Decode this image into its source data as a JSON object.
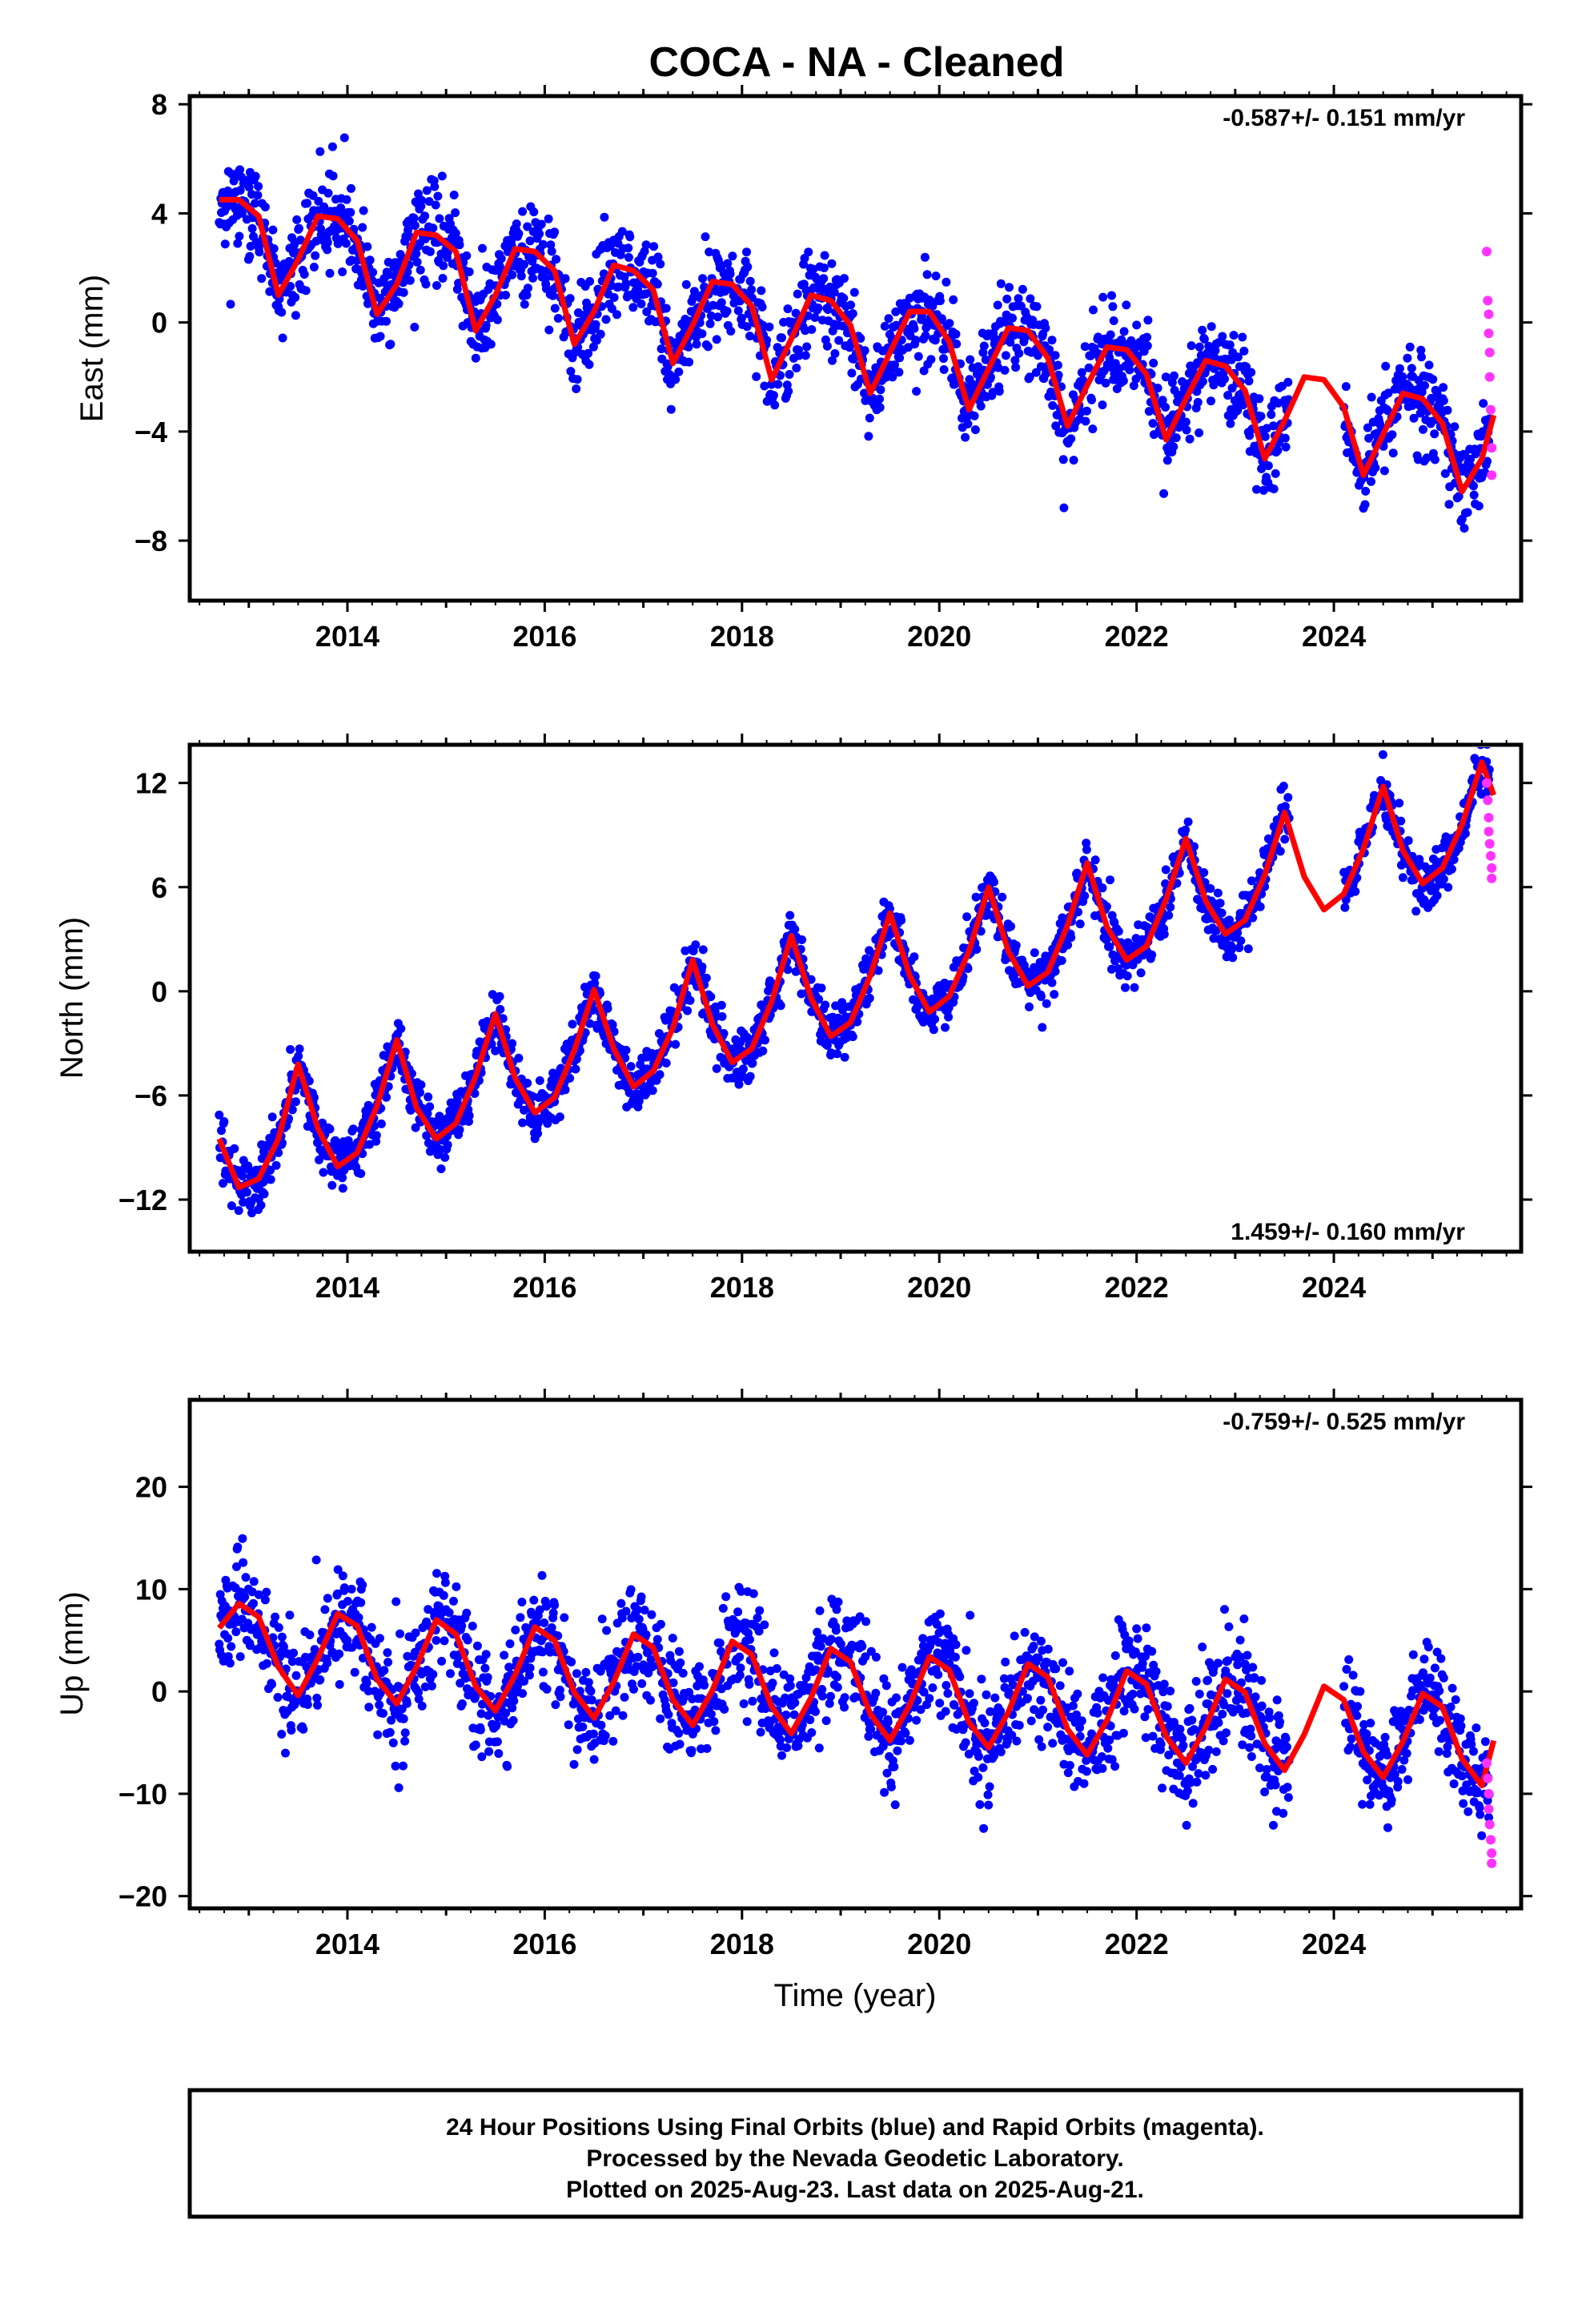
{
  "title": "COCA  - NA - Cleaned",
  "footer": {
    "lines": [
      "24 Hour Positions Using Final Orbits (blue) and Rapid Orbits (magenta).",
      "Processed by the Nevada Geodetic Laboratory.",
      "Plotted on 2025-Aug-23. Last data on 2025-Aug-21."
    ]
  },
  "colors": {
    "final": "#0000ff",
    "rapid": "#ff33ff",
    "fit": "#ff0000",
    "axis": "#000000"
  },
  "chart_data": [
    {
      "type": "scatter",
      "ylabel": "East (mm)",
      "xlabel": "",
      "xlim": [
        2012.45,
        2025.85
      ],
      "ylim": [
        -10.2,
        8.3
      ],
      "xticks": [
        2014,
        2016,
        2018,
        2020,
        2022,
        2024
      ],
      "yticks": [
        -8,
        -4,
        0,
        4,
        8
      ],
      "grid": false,
      "rate_text": "-0.587+/- 0.151 mm/yr",
      "rate_placement": "top-right",
      "series": [
        {
          "style": "final-orbits-points-and-fit",
          "fit_samples": [
            [
              2012.7,
              4.5
            ],
            [
              2012.9,
              4.5
            ],
            [
              2013.1,
              3.9
            ],
            [
              2013.3,
              1.0
            ],
            [
              2013.5,
              2.3
            ],
            [
              2013.7,
              3.9
            ],
            [
              2013.9,
              3.8
            ],
            [
              2014.1,
              3.0
            ],
            [
              2014.3,
              0.3
            ],
            [
              2014.5,
              1.4
            ],
            [
              2014.7,
              3.3
            ],
            [
              2014.9,
              3.2
            ],
            [
              2015.1,
              2.6
            ],
            [
              2015.3,
              -0.3
            ],
            [
              2015.5,
              1.0
            ],
            [
              2015.7,
              2.7
            ],
            [
              2015.9,
              2.6
            ],
            [
              2016.1,
              1.9
            ],
            [
              2016.3,
              -0.8
            ],
            [
              2016.5,
              0.4
            ],
            [
              2016.7,
              2.1
            ],
            [
              2016.9,
              1.9
            ],
            [
              2017.1,
              1.2
            ],
            [
              2017.3,
              -1.5
            ],
            [
              2017.5,
              -0.1
            ],
            [
              2017.7,
              1.5
            ],
            [
              2017.9,
              1.4
            ],
            [
              2018.1,
              0.6
            ],
            [
              2018.3,
              -2.1
            ],
            [
              2018.5,
              -0.6
            ],
            [
              2018.7,
              1.0
            ],
            [
              2018.9,
              0.8
            ],
            [
              2019.1,
              -0.1
            ],
            [
              2019.3,
              -2.6
            ],
            [
              2019.5,
              -1.1
            ],
            [
              2019.7,
              0.4
            ],
            [
              2019.9,
              0.4
            ],
            [
              2020.1,
              -0.7
            ],
            [
              2020.3,
              -3.2
            ],
            [
              2020.5,
              -1.7
            ],
            [
              2020.7,
              -0.2
            ],
            [
              2020.9,
              -0.3
            ],
            [
              2021.1,
              -1.3
            ],
            [
              2021.3,
              -3.8
            ],
            [
              2021.5,
              -2.3
            ],
            [
              2021.7,
              -0.9
            ],
            [
              2021.9,
              -1.0
            ],
            [
              2022.1,
              -1.9
            ],
            [
              2022.3,
              -4.3
            ],
            [
              2022.5,
              -2.8
            ],
            [
              2022.7,
              -1.4
            ],
            [
              2022.9,
              -1.6
            ],
            [
              2023.1,
              -2.5
            ],
            [
              2023.3,
              -5.0
            ],
            [
              2023.5,
              -3.6
            ],
            [
              2023.7,
              -2.0
            ],
            [
              2023.9,
              -2.1
            ],
            [
              2024.1,
              -3.1
            ],
            [
              2024.3,
              -5.6
            ],
            [
              2024.5,
              -4.1
            ],
            [
              2024.7,
              -2.6
            ],
            [
              2024.9,
              -2.8
            ],
            [
              2025.1,
              -3.7
            ],
            [
              2025.3,
              -6.2
            ],
            [
              2025.5,
              -5.0
            ],
            [
              2025.62,
              -3.4
            ]
          ],
          "scatter_noise_mm": 1.4
        },
        {
          "style": "rapid-orbits-points",
          "points": [
            [
              2025.55,
              2.6
            ],
            [
              2025.56,
              0.8
            ],
            [
              2025.57,
              0.3
            ],
            [
              2025.57,
              -0.4
            ],
            [
              2025.58,
              -1.1
            ],
            [
              2025.58,
              -2.0
            ],
            [
              2025.59,
              -3.2
            ],
            [
              2025.6,
              -4.6
            ],
            [
              2025.6,
              -5.6
            ]
          ]
        }
      ]
    },
    {
      "type": "scatter",
      "ylabel": "North (mm)",
      "xlabel": "",
      "xlim": [
        2012.45,
        2025.85
      ],
      "ylim": [
        -15.0,
        14.2
      ],
      "xticks": [
        2014,
        2016,
        2018,
        2020,
        2022,
        2024
      ],
      "yticks": [
        -12,
        -6,
        0,
        6,
        12
      ],
      "grid": false,
      "rate_text": "1.459+/- 0.160 mm/yr",
      "rate_placement": "bottom-right",
      "series": [
        {
          "style": "final-orbits-points-and-fit",
          "fit_samples": [
            [
              2012.7,
              -8.5
            ],
            [
              2012.9,
              -11.3
            ],
            [
              2013.1,
              -10.8
            ],
            [
              2013.3,
              -8.5
            ],
            [
              2013.5,
              -4.2
            ],
            [
              2013.7,
              -7.9
            ],
            [
              2013.9,
              -10.1
            ],
            [
              2014.1,
              -9.3
            ],
            [
              2014.3,
              -6.6
            ],
            [
              2014.5,
              -2.8
            ],
            [
              2014.7,
              -6.7
            ],
            [
              2014.9,
              -8.5
            ],
            [
              2015.1,
              -7.6
            ],
            [
              2015.3,
              -4.9
            ],
            [
              2015.5,
              -1.3
            ],
            [
              2015.7,
              -5.0
            ],
            [
              2015.9,
              -7.0
            ],
            [
              2016.1,
              -6.1
            ],
            [
              2016.3,
              -3.4
            ],
            [
              2016.5,
              0.1
            ],
            [
              2016.7,
              -3.3
            ],
            [
              2016.9,
              -5.5
            ],
            [
              2017.1,
              -4.6
            ],
            [
              2017.3,
              -2.1
            ],
            [
              2017.5,
              1.8
            ],
            [
              2017.7,
              -1.9
            ],
            [
              2017.9,
              -4.1
            ],
            [
              2018.1,
              -3.3
            ],
            [
              2018.3,
              -0.6
            ],
            [
              2018.5,
              3.2
            ],
            [
              2018.7,
              -0.4
            ],
            [
              2018.9,
              -2.6
            ],
            [
              2019.1,
              -1.8
            ],
            [
              2019.3,
              0.9
            ],
            [
              2019.5,
              4.5
            ],
            [
              2019.7,
              0.9
            ],
            [
              2019.9,
              -1.2
            ],
            [
              2020.1,
              -0.3
            ],
            [
              2020.3,
              2.3
            ],
            [
              2020.5,
              6.0
            ],
            [
              2020.7,
              2.3
            ],
            [
              2020.9,
              0.3
            ],
            [
              2021.1,
              1.1
            ],
            [
              2021.3,
              3.8
            ],
            [
              2021.5,
              7.4
            ],
            [
              2021.7,
              3.7
            ],
            [
              2021.9,
              1.8
            ],
            [
              2022.1,
              2.6
            ],
            [
              2022.3,
              5.3
            ],
            [
              2022.5,
              8.8
            ],
            [
              2022.7,
              5.2
            ],
            [
              2022.9,
              3.3
            ],
            [
              2023.1,
              4.1
            ],
            [
              2023.3,
              6.7
            ],
            [
              2023.5,
              10.3
            ],
            [
              2023.7,
              6.6
            ],
            [
              2023.9,
              4.7
            ],
            [
              2024.1,
              5.6
            ],
            [
              2024.3,
              8.2
            ],
            [
              2024.5,
              11.8
            ],
            [
              2024.7,
              8.1
            ],
            [
              2024.9,
              6.2
            ],
            [
              2025.1,
              7.1
            ],
            [
              2025.3,
              9.6
            ],
            [
              2025.5,
              13.2
            ],
            [
              2025.62,
              11.3
            ]
          ],
          "scatter_noise_mm": 1.3
        },
        {
          "style": "rapid-orbits-points",
          "points": [
            [
              2025.55,
              12.0
            ],
            [
              2025.56,
              11.0
            ],
            [
              2025.57,
              10.0
            ],
            [
              2025.57,
              9.2
            ],
            [
              2025.58,
              8.5
            ],
            [
              2025.59,
              7.8
            ],
            [
              2025.6,
              7.1
            ],
            [
              2025.6,
              6.5
            ]
          ]
        }
      ]
    },
    {
      "type": "scatter",
      "ylabel": "Up (mm)",
      "xlabel": "Time (year)",
      "xlim": [
        2012.45,
        2025.85
      ],
      "ylim": [
        -21.2,
        28.5
      ],
      "xticks": [
        2014,
        2016,
        2018,
        2020,
        2022,
        2024
      ],
      "yticks": [
        -20,
        -10,
        0,
        10,
        20
      ],
      "grid": false,
      "rate_text": "-0.759+/- 0.525 mm/yr",
      "rate_placement": "top-right",
      "series": [
        {
          "style": "final-orbits-points-and-fit",
          "fit_samples": [
            [
              2012.7,
              6.2
            ],
            [
              2012.9,
              8.6
            ],
            [
              2013.1,
              7.3
            ],
            [
              2013.3,
              2.4
            ],
            [
              2013.5,
              -0.4
            ],
            [
              2013.7,
              3.2
            ],
            [
              2013.9,
              7.6
            ],
            [
              2014.1,
              6.4
            ],
            [
              2014.3,
              1.2
            ],
            [
              2014.5,
              -1.2
            ],
            [
              2014.7,
              2.4
            ],
            [
              2014.9,
              7.0
            ],
            [
              2015.1,
              5.6
            ],
            [
              2015.3,
              0.5
            ],
            [
              2015.5,
              -1.9
            ],
            [
              2015.7,
              1.6
            ],
            [
              2015.9,
              6.3
            ],
            [
              2016.1,
              5.0
            ],
            [
              2016.3,
              -0.1
            ],
            [
              2016.5,
              -2.6
            ],
            [
              2016.7,
              0.9
            ],
            [
              2016.9,
              5.6
            ],
            [
              2017.1,
              4.3
            ],
            [
              2017.3,
              -0.8
            ],
            [
              2017.5,
              -3.3
            ],
            [
              2017.7,
              0.1
            ],
            [
              2017.9,
              4.9
            ],
            [
              2018.1,
              3.6
            ],
            [
              2018.3,
              -1.5
            ],
            [
              2018.5,
              -4.1
            ],
            [
              2018.7,
              -0.6
            ],
            [
              2018.9,
              4.2
            ],
            [
              2019.1,
              2.9
            ],
            [
              2019.3,
              -2.2
            ],
            [
              2019.5,
              -4.8
            ],
            [
              2019.7,
              -1.3
            ],
            [
              2019.9,
              3.4
            ],
            [
              2020.1,
              2.1
            ],
            [
              2020.3,
              -3.0
            ],
            [
              2020.5,
              -5.5
            ],
            [
              2020.7,
              -2.0
            ],
            [
              2020.9,
              2.7
            ],
            [
              2021.1,
              1.4
            ],
            [
              2021.3,
              -3.7
            ],
            [
              2021.5,
              -6.2
            ],
            [
              2021.7,
              -2.8
            ],
            [
              2021.9,
              2.0
            ],
            [
              2022.1,
              0.7
            ],
            [
              2022.3,
              -4.4
            ],
            [
              2022.5,
              -7.0
            ],
            [
              2022.7,
              -3.5
            ],
            [
              2022.9,
              1.2
            ],
            [
              2023.1,
              -0.1
            ],
            [
              2023.3,
              -5.1
            ],
            [
              2023.5,
              -7.7
            ],
            [
              2023.7,
              -4.2
            ],
            [
              2023.9,
              0.5
            ],
            [
              2024.1,
              -0.8
            ],
            [
              2024.3,
              -5.9
            ],
            [
              2024.5,
              -8.4
            ],
            [
              2024.7,
              -4.9
            ],
            [
              2024.9,
              -0.2
            ],
            [
              2025.1,
              -1.5
            ],
            [
              2025.3,
              -6.6
            ],
            [
              2025.5,
              -9.2
            ],
            [
              2025.62,
              -4.8
            ]
          ],
          "scatter_noise_mm": 4.5
        },
        {
          "style": "rapid-orbits-points",
          "points": [
            [
              2025.55,
              -7.0
            ],
            [
              2025.56,
              -8.5
            ],
            [
              2025.57,
              -10.0
            ],
            [
              2025.57,
              -11.5
            ],
            [
              2025.58,
              -13.0
            ],
            [
              2025.59,
              -14.5
            ],
            [
              2025.6,
              -15.8
            ],
            [
              2025.6,
              -16.8
            ]
          ]
        }
      ]
    }
  ]
}
